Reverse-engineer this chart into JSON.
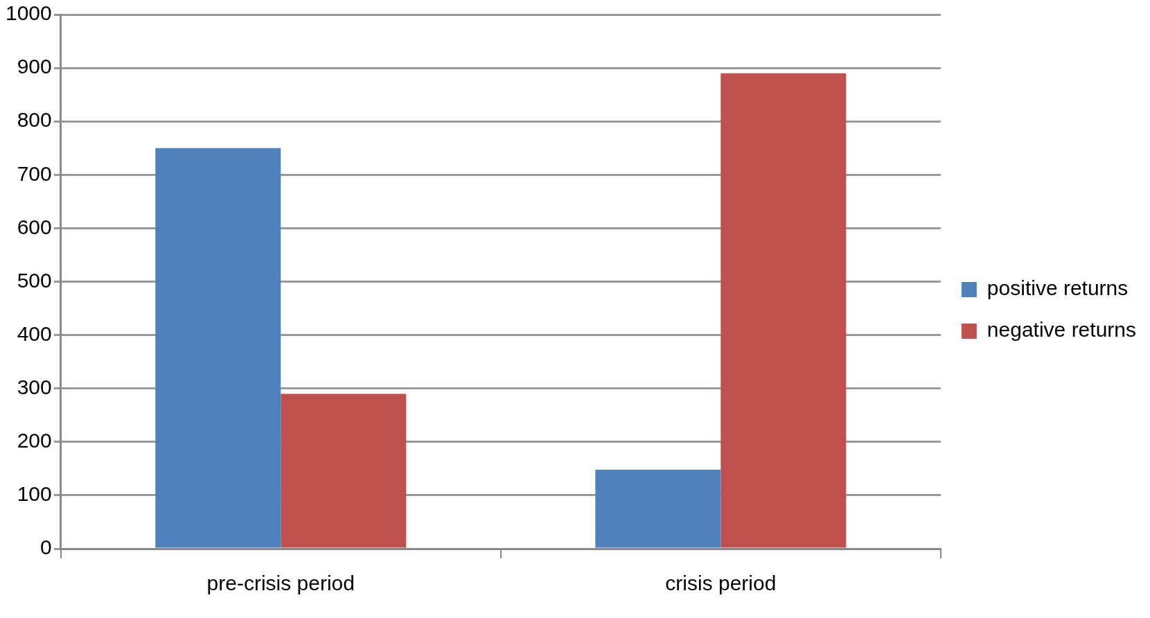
{
  "chart_data": {
    "type": "bar",
    "categories": [
      "pre-crisis period",
      "crisis period"
    ],
    "series": [
      {
        "name": "positive returns",
        "color": "#4f81bd",
        "values": [
          750,
          148
        ]
      },
      {
        "name": "negative returns",
        "color": "#c0504d",
        "values": [
          290,
          890
        ]
      }
    ],
    "ylim": [
      0,
      1000
    ],
    "yticks": [
      0,
      100,
      200,
      300,
      400,
      500,
      600,
      700,
      800,
      900,
      1000
    ],
    "grid": "y",
    "legend": "right"
  }
}
